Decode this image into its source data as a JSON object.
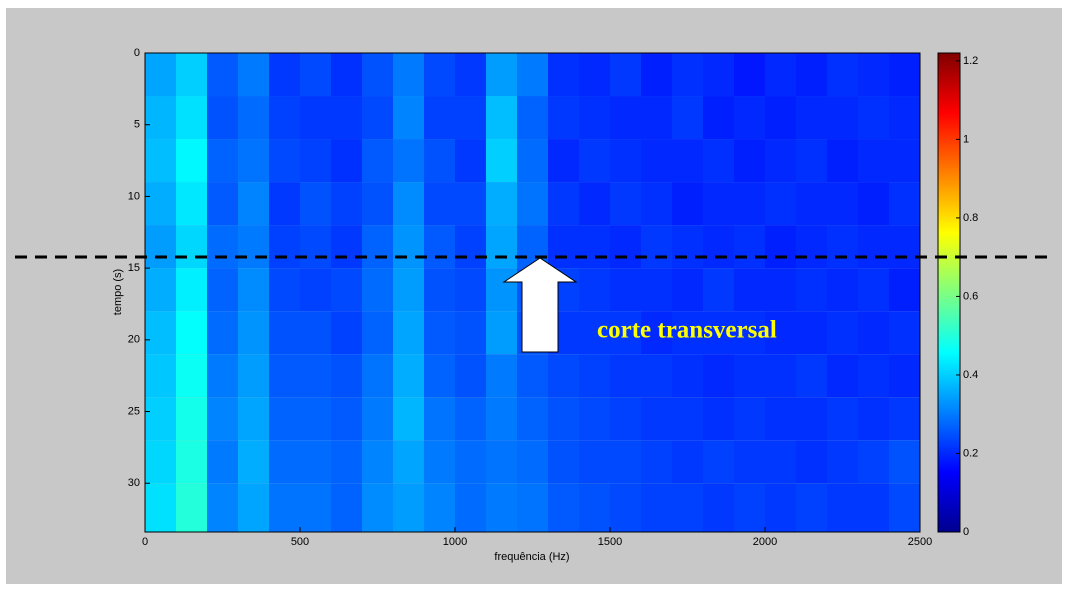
{
  "chart_data": {
    "type": "heatmap",
    "xlabel": "frequência (Hz)",
    "ylabel": "tempo (s)",
    "annotation": "corte transversal",
    "xlim": [
      0,
      2500
    ],
    "xticks": [
      0,
      500,
      1000,
      1500,
      2000,
      2500
    ],
    "ylim": [
      0,
      33.4
    ],
    "yticks": [
      0,
      5,
      10,
      15,
      20,
      25,
      30
    ],
    "y_reversed": true,
    "clim": [
      0,
      1.22
    ],
    "cticks": [
      0,
      0.2,
      0.4,
      0.6,
      0.8,
      1,
      1.2
    ],
    "colormap": "jet",
    "x_edges": [
      0,
      100,
      200,
      300,
      400,
      500,
      600,
      700,
      800,
      900,
      1000,
      1100,
      1200,
      1300,
      1400,
      1500,
      1600,
      1700,
      1800,
      1900,
      2000,
      2100,
      2200,
      2300,
      2400,
      2500
    ],
    "y_edges": [
      0,
      3,
      6,
      9,
      12,
      15,
      18,
      21,
      24,
      27,
      30,
      33.4
    ],
    "values": [
      [
        0.35,
        0.4,
        0.26,
        0.3,
        0.22,
        0.24,
        0.21,
        0.25,
        0.3,
        0.24,
        0.22,
        0.34,
        0.3,
        0.21,
        0.2,
        0.22,
        0.19,
        0.21,
        0.2,
        0.18,
        0.2,
        0.19,
        0.21,
        0.2,
        0.19
      ],
      [
        0.37,
        0.42,
        0.25,
        0.28,
        0.23,
        0.22,
        0.22,
        0.24,
        0.31,
        0.23,
        0.23,
        0.38,
        0.27,
        0.22,
        0.21,
        0.2,
        0.2,
        0.22,
        0.19,
        0.2,
        0.19,
        0.2,
        0.2,
        0.21,
        0.2
      ],
      [
        0.38,
        0.45,
        0.27,
        0.29,
        0.24,
        0.23,
        0.21,
        0.26,
        0.29,
        0.25,
        0.22,
        0.4,
        0.28,
        0.2,
        0.22,
        0.21,
        0.2,
        0.2,
        0.21,
        0.19,
        0.2,
        0.21,
        0.19,
        0.2,
        0.2
      ],
      [
        0.36,
        0.43,
        0.26,
        0.31,
        0.22,
        0.25,
        0.23,
        0.25,
        0.32,
        0.24,
        0.24,
        0.36,
        0.29,
        0.22,
        0.2,
        0.22,
        0.21,
        0.19,
        0.2,
        0.2,
        0.21,
        0.2,
        0.2,
        0.19,
        0.21
      ],
      [
        0.34,
        0.41,
        0.28,
        0.3,
        0.23,
        0.24,
        0.22,
        0.27,
        0.33,
        0.26,
        0.23,
        0.35,
        0.27,
        0.21,
        0.21,
        0.2,
        0.22,
        0.21,
        0.2,
        0.21,
        0.19,
        0.2,
        0.21,
        0.2,
        0.2
      ],
      [
        0.36,
        0.44,
        0.27,
        0.32,
        0.24,
        0.23,
        0.24,
        0.28,
        0.34,
        0.25,
        0.24,
        0.33,
        0.26,
        0.23,
        0.22,
        0.21,
        0.21,
        0.2,
        0.22,
        0.2,
        0.2,
        0.21,
        0.2,
        0.21,
        0.19
      ],
      [
        0.38,
        0.46,
        0.28,
        0.33,
        0.25,
        0.25,
        0.23,
        0.27,
        0.35,
        0.26,
        0.25,
        0.34,
        0.25,
        0.22,
        0.22,
        0.22,
        0.2,
        0.21,
        0.21,
        0.21,
        0.2,
        0.2,
        0.21,
        0.2,
        0.21
      ],
      [
        0.39,
        0.47,
        0.3,
        0.34,
        0.26,
        0.26,
        0.25,
        0.29,
        0.36,
        0.27,
        0.25,
        0.3,
        0.26,
        0.24,
        0.23,
        0.22,
        0.22,
        0.21,
        0.2,
        0.21,
        0.21,
        0.22,
        0.2,
        0.21,
        0.2
      ],
      [
        0.4,
        0.48,
        0.31,
        0.35,
        0.27,
        0.27,
        0.26,
        0.3,
        0.37,
        0.29,
        0.27,
        0.3,
        0.27,
        0.25,
        0.24,
        0.23,
        0.22,
        0.22,
        0.21,
        0.22,
        0.21,
        0.21,
        0.22,
        0.21,
        0.22
      ],
      [
        0.41,
        0.49,
        0.3,
        0.36,
        0.28,
        0.28,
        0.27,
        0.31,
        0.35,
        0.3,
        0.28,
        0.29,
        0.28,
        0.25,
        0.24,
        0.24,
        0.23,
        0.22,
        0.23,
        0.22,
        0.22,
        0.21,
        0.22,
        0.23,
        0.25
      ],
      [
        0.42,
        0.5,
        0.31,
        0.35,
        0.29,
        0.29,
        0.27,
        0.32,
        0.34,
        0.31,
        0.28,
        0.3,
        0.29,
        0.26,
        0.25,
        0.24,
        0.23,
        0.23,
        0.22,
        0.23,
        0.22,
        0.23,
        0.22,
        0.22,
        0.24
      ]
    ]
  }
}
